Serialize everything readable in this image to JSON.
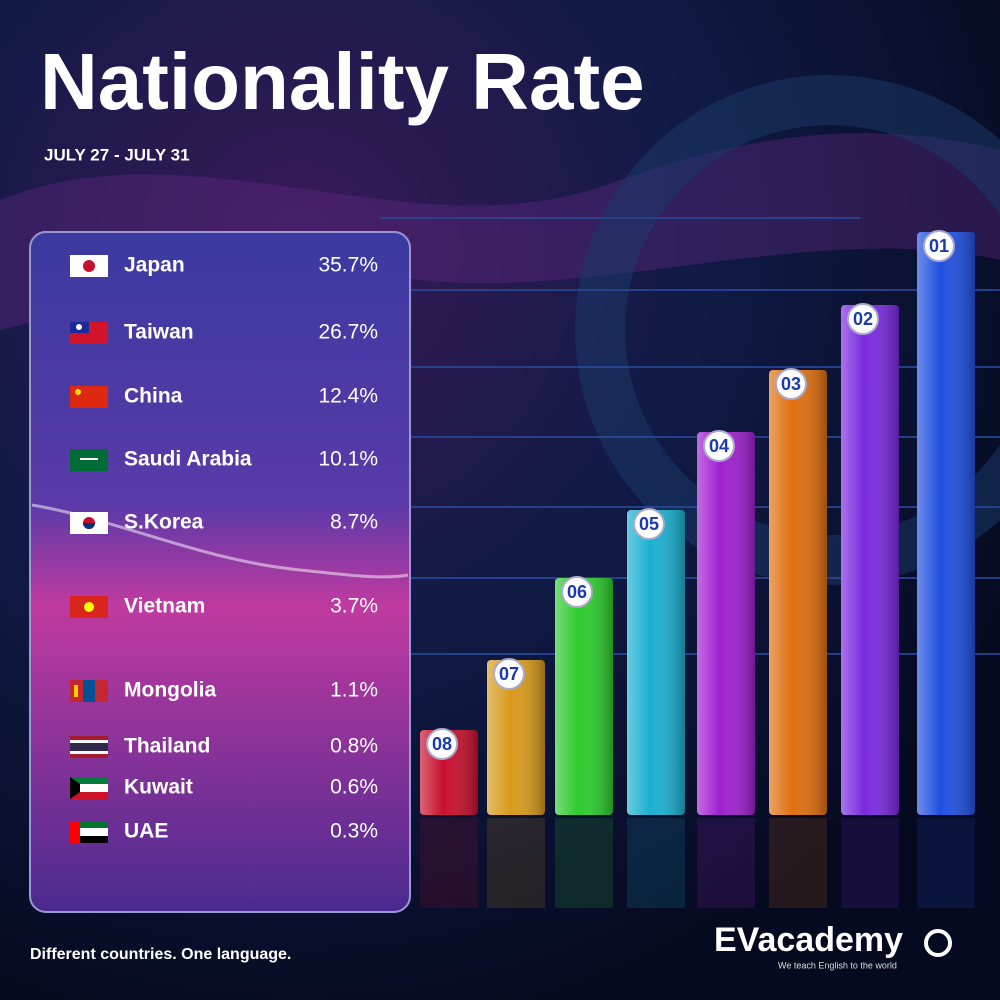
{
  "header": {
    "title": "Nationality Rate",
    "subtitle": "JULY 27 - JULY 31"
  },
  "table": {
    "rows": [
      [
        "Japan",
        "35.7%"
      ],
      [
        "Taiwan",
        "26.7%"
      ],
      [
        "China",
        "12.4%"
      ],
      [
        "Saudi Arabia",
        "10.1%"
      ],
      [
        "S.Korea",
        "8.7%"
      ],
      [
        "Vietnam",
        "3.7%"
      ],
      [
        "Mongolia",
        "1.1%"
      ],
      [
        "Thailand",
        "0.8%"
      ],
      [
        "Kuwait",
        "0.6%"
      ],
      [
        "UAE",
        "0.3%"
      ]
    ]
  },
  "ranks": [
    "08",
    "07",
    "06",
    "05",
    "04",
    "03",
    "02",
    "01"
  ],
  "footer": {
    "tagline": "Different countries. One language.",
    "logo": "EVacademy",
    "logo_tagline": "We teach English to the world"
  }
}
